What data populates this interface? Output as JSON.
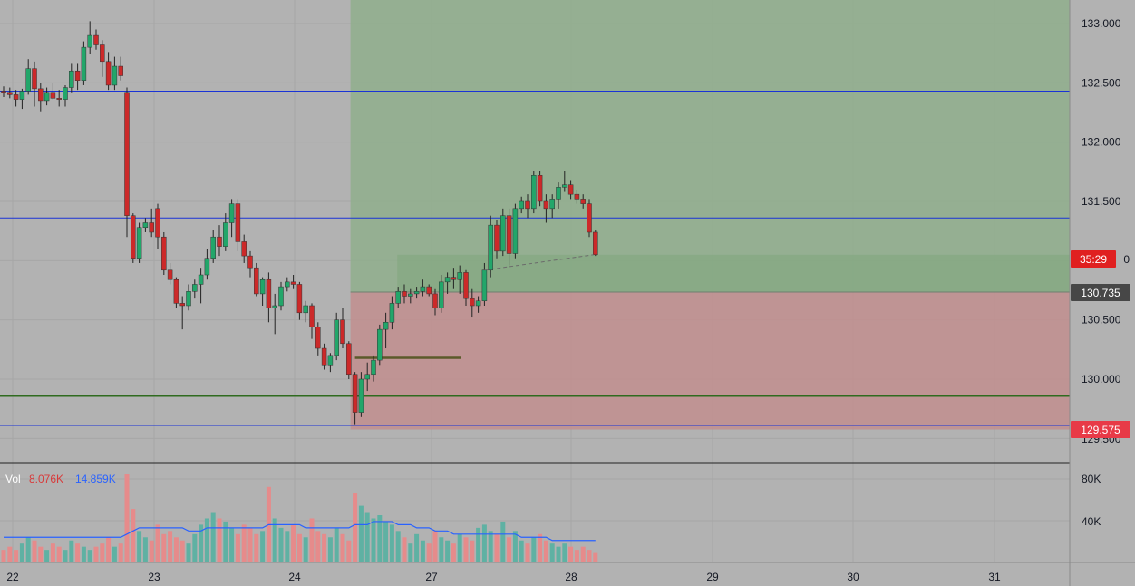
{
  "chart_data": {
    "type": "candlestick",
    "x_ticks": [
      "22",
      "23",
      "24",
      "27",
      "28",
      "29",
      "30",
      "31"
    ],
    "y_ticks": [
      "133.000",
      "132.500",
      "132.000",
      "131.500",
      "130.500",
      "130.000"
    ],
    "ylim": [
      129.5,
      133.2
    ],
    "grid": true,
    "candles_ohlc": [
      [
        132.43,
        132.47,
        132.38,
        132.42
      ],
      [
        132.42,
        132.46,
        132.37,
        132.4
      ],
      [
        132.4,
        132.44,
        132.3,
        132.36
      ],
      [
        132.36,
        132.45,
        132.28,
        132.43
      ],
      [
        132.43,
        132.7,
        132.4,
        132.62
      ],
      [
        132.62,
        132.68,
        132.3,
        132.45
      ],
      [
        132.45,
        132.5,
        132.26,
        132.35
      ],
      [
        132.35,
        132.46,
        132.31,
        132.42
      ],
      [
        132.42,
        132.5,
        132.36,
        132.37
      ],
      [
        132.37,
        132.44,
        132.3,
        132.36
      ],
      [
        132.36,
        132.48,
        132.3,
        132.46
      ],
      [
        132.46,
        132.66,
        132.42,
        132.6
      ],
      [
        132.6,
        132.66,
        132.44,
        132.52
      ],
      [
        132.52,
        132.85,
        132.48,
        132.8
      ],
      [
        132.8,
        133.02,
        132.74,
        132.9
      ],
      [
        132.9,
        132.95,
        132.78,
        132.82
      ],
      [
        132.82,
        132.86,
        132.55,
        132.68
      ],
      [
        132.68,
        132.76,
        132.44,
        132.48
      ],
      [
        132.48,
        132.72,
        132.44,
        132.64
      ],
      [
        132.64,
        132.72,
        132.52,
        132.56
      ],
      [
        132.42,
        132.46,
        131.2,
        131.38
      ],
      [
        131.38,
        131.4,
        130.98,
        131.02
      ],
      [
        131.02,
        131.32,
        130.98,
        131.28
      ],
      [
        131.28,
        131.36,
        131.24,
        131.32
      ],
      [
        131.32,
        131.44,
        131.2,
        131.24
      ],
      [
        131.44,
        131.48,
        131.1,
        131.2
      ],
      [
        131.2,
        131.24,
        130.88,
        130.92
      ],
      [
        130.92,
        130.98,
        130.8,
        130.84
      ],
      [
        130.84,
        130.86,
        130.6,
        130.64
      ],
      [
        130.64,
        130.7,
        130.42,
        130.62
      ],
      [
        130.62,
        130.8,
        130.58,
        130.74
      ],
      [
        130.74,
        130.84,
        130.68,
        130.8
      ],
      [
        130.8,
        130.94,
        130.64,
        130.88
      ],
      [
        130.88,
        131.1,
        130.84,
        131.02
      ],
      [
        131.02,
        131.26,
        130.98,
        131.2
      ],
      [
        131.2,
        131.3,
        131.04,
        131.12
      ],
      [
        131.12,
        131.4,
        131.08,
        131.32
      ],
      [
        131.32,
        131.52,
        131.2,
        131.48
      ],
      [
        131.48,
        131.52,
        131.08,
        131.16
      ],
      [
        131.16,
        131.22,
        130.98,
        131.04
      ],
      [
        131.04,
        131.08,
        130.86,
        130.94
      ],
      [
        130.94,
        130.98,
        130.7,
        130.72
      ],
      [
        130.72,
        130.86,
        130.62,
        130.84
      ],
      [
        130.84,
        130.9,
        130.48,
        130.6
      ],
      [
        130.6,
        130.72,
        130.38,
        130.62
      ],
      [
        130.62,
        130.82,
        130.58,
        130.78
      ],
      [
        130.78,
        130.86,
        130.74,
        130.82
      ],
      [
        130.82,
        130.88,
        130.76,
        130.8
      ],
      [
        130.8,
        130.82,
        130.5,
        130.56
      ],
      [
        130.56,
        130.66,
        130.48,
        130.62
      ],
      [
        130.62,
        130.64,
        130.34,
        130.44
      ],
      [
        130.44,
        130.48,
        130.2,
        130.26
      ],
      [
        130.26,
        130.3,
        130.08,
        130.12
      ],
      [
        130.12,
        130.22,
        130.06,
        130.2
      ],
      [
        130.2,
        130.56,
        130.16,
        130.5
      ],
      [
        130.5,
        130.6,
        130.26,
        130.3
      ],
      [
        130.3,
        130.32,
        130.0,
        130.04
      ],
      [
        130.04,
        130.06,
        129.62,
        129.72
      ],
      [
        129.72,
        130.06,
        129.68,
        130.0
      ],
      [
        130.0,
        130.14,
        129.9,
        130.04
      ],
      [
        130.04,
        130.2,
        129.98,
        130.16
      ],
      [
        130.16,
        130.46,
        130.12,
        130.42
      ],
      [
        130.42,
        130.56,
        130.26,
        130.48
      ],
      [
        130.48,
        130.7,
        130.42,
        130.64
      ],
      [
        130.64,
        130.78,
        130.6,
        130.74
      ],
      [
        130.74,
        130.8,
        130.64,
        130.7
      ],
      [
        130.7,
        130.76,
        130.64,
        130.72
      ],
      [
        130.72,
        130.78,
        130.68,
        130.74
      ],
      [
        130.74,
        130.84,
        130.7,
        130.78
      ],
      [
        130.78,
        130.8,
        130.7,
        130.72
      ],
      [
        130.72,
        130.76,
        130.54,
        130.6
      ],
      [
        130.6,
        130.88,
        130.56,
        130.82
      ],
      [
        130.82,
        130.9,
        130.72,
        130.86
      ],
      [
        130.86,
        130.94,
        130.76,
        130.84
      ],
      [
        130.84,
        130.96,
        130.72,
        130.9
      ],
      [
        130.9,
        130.92,
        130.62,
        130.68
      ],
      [
        130.68,
        130.76,
        130.52,
        130.62
      ],
      [
        130.62,
        130.7,
        130.56,
        130.66
      ],
      [
        130.66,
        130.98,
        130.62,
        130.92
      ],
      [
        130.92,
        131.38,
        130.86,
        131.3
      ],
      [
        131.3,
        131.34,
        131.02,
        131.08
      ],
      [
        131.08,
        131.44,
        131.04,
        131.38
      ],
      [
        131.38,
        131.44,
        130.96,
        131.06
      ],
      [
        131.06,
        131.48,
        131.02,
        131.44
      ],
      [
        131.44,
        131.54,
        131.4,
        131.5
      ],
      [
        131.5,
        131.56,
        131.36,
        131.44
      ],
      [
        131.44,
        131.76,
        131.4,
        131.72
      ],
      [
        131.72,
        131.76,
        131.46,
        131.5
      ],
      [
        131.5,
        131.56,
        131.32,
        131.44
      ],
      [
        131.44,
        131.56,
        131.36,
        131.52
      ],
      [
        131.52,
        131.66,
        131.44,
        131.62
      ],
      [
        131.62,
        131.76,
        131.58,
        131.64
      ],
      [
        131.64,
        131.68,
        131.52,
        131.56
      ],
      [
        131.56,
        131.6,
        131.48,
        131.52
      ],
      [
        131.52,
        131.56,
        131.44,
        131.48
      ],
      [
        131.48,
        131.52,
        131.2,
        131.24
      ],
      [
        131.24,
        131.26,
        131.04,
        131.05
      ]
    ],
    "volume": [
      4,
      5,
      4,
      6,
      8,
      7,
      5,
      4,
      6,
      5,
      4,
      7,
      6,
      5,
      4,
      5,
      6,
      8,
      5,
      6,
      28,
      17,
      10,
      8,
      7,
      12,
      9,
      10,
      8,
      7,
      6,
      9,
      12,
      14,
      16,
      14,
      13,
      11,
      9,
      12,
      11,
      9,
      10,
      24,
      14,
      11,
      10,
      12,
      9,
      8,
      14,
      10,
      9,
      8,
      11,
      9,
      7,
      22,
      18,
      16,
      14,
      15,
      13,
      12,
      10,
      8,
      6,
      9,
      7,
      6,
      10,
      8,
      7,
      6,
      9,
      8,
      7,
      11,
      12,
      10,
      9,
      13,
      8,
      10,
      7,
      6,
      8,
      9,
      7,
      6,
      5,
      6,
      5,
      4,
      5,
      4,
      3
    ],
    "vol_ma": [
      8,
      8,
      8,
      8,
      8,
      8,
      8,
      8,
      8,
      8,
      8,
      8,
      8,
      8,
      8,
      8,
      8,
      8,
      8,
      8,
      9,
      10,
      11,
      11,
      11,
      11,
      11,
      11,
      11,
      11,
      10,
      10,
      10,
      11,
      11,
      11,
      11,
      11,
      11,
      11,
      11,
      11,
      11,
      12,
      12,
      12,
      12,
      12,
      12,
      11,
      11,
      11,
      11,
      11,
      11,
      11,
      11,
      12,
      12,
      12,
      13,
      13,
      13,
      13,
      12,
      12,
      12,
      11,
      11,
      11,
      10,
      10,
      10,
      9,
      9,
      9,
      9,
      9,
      9,
      9,
      9,
      9,
      9,
      9,
      8,
      8,
      8,
      8,
      8,
      7,
      7,
      7,
      7,
      7,
      7,
      7,
      7
    ],
    "vol_max": 30,
    "vol_ticks": [
      "80K",
      "40K"
    ],
    "vol_legend": {
      "name": "Vol",
      "a": "8.076K",
      "b": "14.859K"
    },
    "hlines_blue": [
      132.43,
      131.36,
      129.61
    ],
    "hline_green": 129.86,
    "hline_olive_short": {
      "y": 130.18,
      "x_from_index": 57,
      "x_to_index": 73
    },
    "position": {
      "entry": 130.735,
      "target": 133.2,
      "stop": 129.575,
      "start_index": 57
    },
    "labels": {
      "timer": "35:29",
      "entry": "130.735",
      "stop": "129.575"
    },
    "colors": {
      "up": "#22a66a",
      "down": "#cc2929",
      "bg": "#b2b2b2",
      "blue_line": "#1a33d6",
      "green_line": "#2f6b1f",
      "olive": "#5b5a2a",
      "vol_up": "#5fb1a3",
      "vol_down": "#e68b8b",
      "vol_ma": "#2962ff",
      "zone_green": "#8fae8c",
      "zone_red": "#c09090"
    }
  }
}
